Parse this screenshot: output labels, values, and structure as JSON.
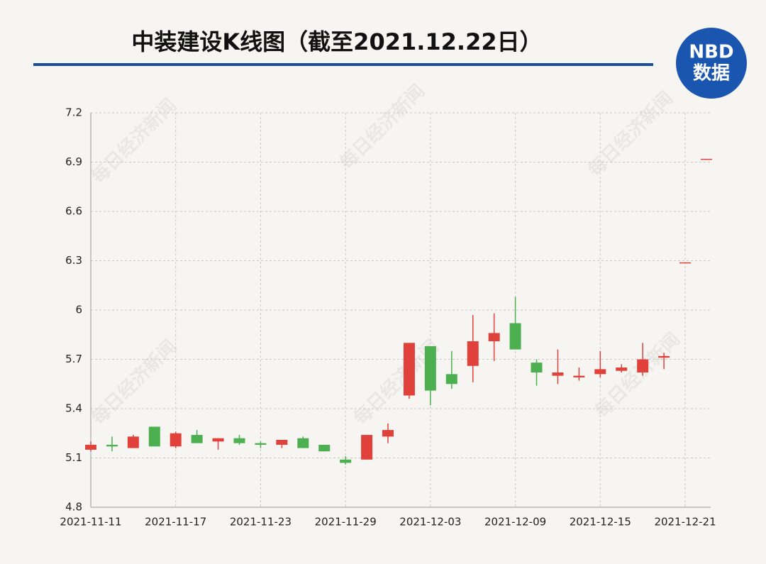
{
  "header": {
    "title": "中装建设K线图（截至2021.12.22日）",
    "logo_top": "NBD",
    "logo_bottom": "数据",
    "watermark": "每日经济新闻"
  },
  "chart_data": {
    "type": "candlestick",
    "categories": [
      "2021-11-11",
      null,
      null,
      null,
      "2021-11-17",
      null,
      null,
      null,
      "2021-11-23",
      null,
      null,
      null,
      "2021-11-29",
      null,
      null,
      null,
      "2021-12-03",
      null,
      null,
      null,
      "2021-12-09",
      null,
      null,
      null,
      "2021-12-15",
      null,
      null,
      null,
      "2021-12-21",
      null
    ],
    "series": [
      {
        "up_color": "#e0413a",
        "down_color": "#4caf50",
        "open": [
          5.15,
          5.18,
          5.16,
          5.29,
          5.17,
          5.24,
          5.2,
          5.22,
          5.19,
          5.18,
          5.22,
          5.18,
          5.09,
          5.09,
          5.23,
          5.48,
          5.78,
          5.61,
          5.66,
          5.81,
          5.92,
          5.68,
          5.6,
          5.59,
          5.61,
          5.63,
          5.62,
          5.71,
          6.29,
          6.92
        ],
        "high": [
          5.2,
          5.23,
          5.24,
          5.29,
          5.26,
          5.27,
          5.22,
          5.24,
          5.2,
          5.21,
          5.23,
          5.18,
          5.11,
          5.24,
          5.31,
          5.8,
          5.78,
          5.75,
          5.97,
          5.98,
          6.08,
          5.7,
          5.76,
          5.65,
          5.75,
          5.67,
          5.8,
          5.74,
          6.29,
          6.92
        ],
        "low": [
          5.14,
          5.14,
          5.16,
          5.17,
          5.16,
          5.19,
          5.15,
          5.18,
          5.16,
          5.16,
          5.16,
          5.14,
          5.06,
          5.09,
          5.19,
          5.46,
          5.42,
          5.52,
          5.56,
          5.69,
          5.76,
          5.54,
          5.55,
          5.57,
          5.59,
          5.62,
          5.6,
          5.64,
          6.29,
          6.92
        ],
        "close": [
          5.18,
          5.17,
          5.23,
          5.17,
          5.25,
          5.19,
          5.22,
          5.19,
          5.18,
          5.21,
          5.16,
          5.14,
          5.07,
          5.24,
          5.27,
          5.8,
          5.51,
          5.55,
          5.81,
          5.86,
          5.76,
          5.62,
          5.62,
          5.6,
          5.64,
          5.65,
          5.7,
          5.72,
          6.29,
          6.92
        ]
      }
    ],
    "ylim": [
      4.8,
      7.2
    ],
    "yticks": [
      4.8,
      5.1,
      5.4,
      5.7,
      {
        "value": 6,
        "label": "6"
      },
      6.3,
      6.6,
      6.9,
      7.2
    ],
    "grid": true
  }
}
